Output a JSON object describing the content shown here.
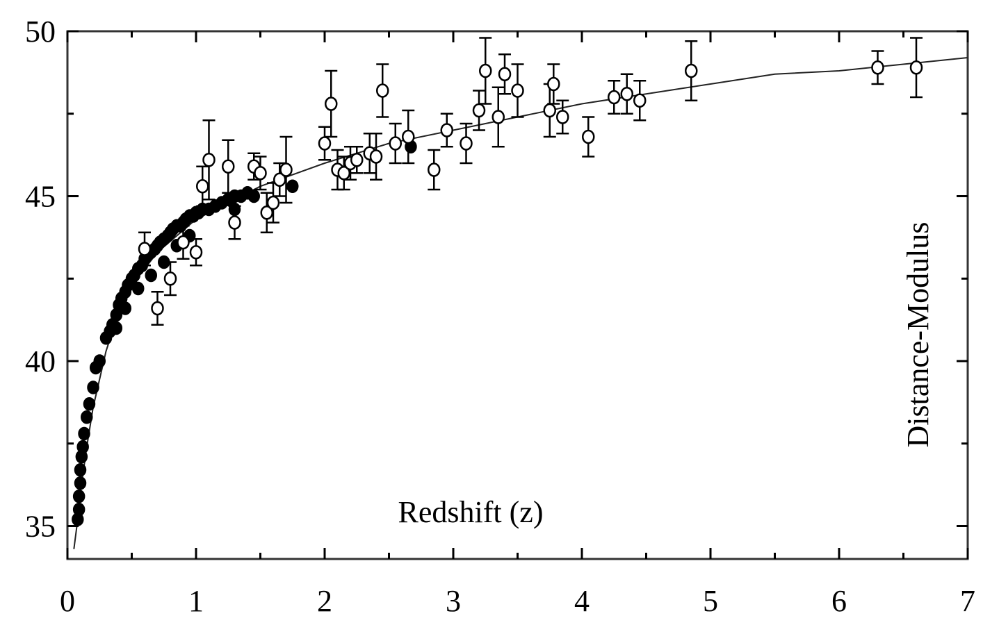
{
  "chart_data": {
    "type": "scatter",
    "title": "",
    "xlabel": "Redshift (z)",
    "ylabel": "Distance-Modulus",
    "xlim": [
      0,
      7
    ],
    "ylim": [
      34,
      50
    ],
    "grid": false,
    "x_ticks": [
      "0",
      "1",
      "2",
      "3",
      "4",
      "5",
      "6",
      "7"
    ],
    "y_ticks": [
      "35",
      "40",
      "45",
      "50"
    ],
    "series": [
      {
        "marker": "filled",
        "points": [
          [
            0.08,
            35.2
          ],
          [
            0.09,
            35.5
          ],
          [
            0.09,
            35.9
          ],
          [
            0.1,
            36.3
          ],
          [
            0.1,
            36.7
          ],
          [
            0.11,
            37.1
          ],
          [
            0.12,
            37.4
          ],
          [
            0.13,
            37.8
          ],
          [
            0.15,
            38.3
          ],
          [
            0.17,
            38.7
          ],
          [
            0.2,
            39.2
          ],
          [
            0.22,
            39.8
          ],
          [
            0.25,
            40.0
          ],
          [
            0.3,
            40.7
          ],
          [
            0.33,
            40.9
          ],
          [
            0.35,
            41.1
          ],
          [
            0.38,
            41.4
          ],
          [
            0.4,
            41.7
          ],
          [
            0.42,
            41.9
          ],
          [
            0.45,
            42.1
          ],
          [
            0.47,
            42.3
          ],
          [
            0.5,
            42.5
          ],
          [
            0.52,
            42.6
          ],
          [
            0.55,
            42.8
          ],
          [
            0.58,
            42.9
          ],
          [
            0.6,
            43.1
          ],
          [
            0.62,
            43.2
          ],
          [
            0.65,
            43.3
          ],
          [
            0.68,
            43.4
          ],
          [
            0.7,
            43.5
          ],
          [
            0.72,
            43.6
          ],
          [
            0.75,
            43.7
          ],
          [
            0.78,
            43.8
          ],
          [
            0.8,
            43.9
          ],
          [
            0.82,
            44.0
          ],
          [
            0.85,
            44.1
          ],
          [
            0.88,
            44.1
          ],
          [
            0.9,
            44.2
          ],
          [
            0.92,
            44.3
          ],
          [
            0.95,
            44.4
          ],
          [
            0.98,
            44.4
          ],
          [
            1.0,
            44.5
          ],
          [
            1.02,
            44.5
          ],
          [
            1.05,
            44.6
          ],
          [
            1.1,
            44.6
          ],
          [
            1.15,
            44.7
          ],
          [
            1.2,
            44.8
          ],
          [
            1.25,
            44.9
          ],
          [
            1.3,
            45.0
          ],
          [
            1.35,
            45.0
          ],
          [
            1.4,
            45.1
          ],
          [
            1.45,
            45.0
          ],
          [
            1.75,
            45.3
          ],
          [
            0.65,
            42.6
          ],
          [
            0.75,
            43.0
          ],
          [
            0.55,
            42.2
          ],
          [
            0.45,
            41.6
          ],
          [
            0.38,
            41.0
          ],
          [
            0.85,
            43.5
          ],
          [
            0.95,
            43.8
          ],
          [
            1.3,
            44.6
          ],
          [
            2.67,
            46.5
          ],
          [
            3.35,
            47.4
          ]
        ]
      },
      {
        "marker": "open",
        "points": [
          [
            0.6,
            43.4
          ],
          [
            0.7,
            41.6
          ],
          [
            0.8,
            42.5
          ],
          [
            0.9,
            43.6
          ],
          [
            1.0,
            43.3
          ],
          [
            1.05,
            45.3
          ],
          [
            1.1,
            46.1
          ],
          [
            1.25,
            45.9
          ],
          [
            1.3,
            44.2
          ],
          [
            1.45,
            45.9
          ],
          [
            1.5,
            45.7
          ],
          [
            1.55,
            44.5
          ],
          [
            1.6,
            44.8
          ],
          [
            1.65,
            45.5
          ],
          [
            1.7,
            45.8
          ],
          [
            2.0,
            46.6
          ],
          [
            2.05,
            47.8
          ],
          [
            2.1,
            45.8
          ],
          [
            2.15,
            45.7
          ],
          [
            2.2,
            46.0
          ],
          [
            2.25,
            46.1
          ],
          [
            2.35,
            46.3
          ],
          [
            2.4,
            46.2
          ],
          [
            2.45,
            48.2
          ],
          [
            2.55,
            46.6
          ],
          [
            2.65,
            46.8
          ],
          [
            2.85,
            45.8
          ],
          [
            2.95,
            47.0
          ],
          [
            3.1,
            46.6
          ],
          [
            3.2,
            47.6
          ],
          [
            3.25,
            48.8
          ],
          [
            3.35,
            47.4
          ],
          [
            3.4,
            48.7
          ],
          [
            3.5,
            48.2
          ],
          [
            3.75,
            47.6
          ],
          [
            3.78,
            48.4
          ],
          [
            3.85,
            47.4
          ],
          [
            4.05,
            46.8
          ],
          [
            4.25,
            48.0
          ],
          [
            4.35,
            48.1
          ],
          [
            4.45,
            47.9
          ],
          [
            4.85,
            48.8
          ],
          [
            6.3,
            48.9
          ],
          [
            6.6,
            48.9
          ]
        ]
      }
    ],
    "error_bars": [
      [
        0.6,
        43.4,
        0.5
      ],
      [
        0.7,
        41.6,
        0.5
      ],
      [
        0.8,
        42.5,
        0.5
      ],
      [
        0.9,
        43.6,
        0.5
      ],
      [
        1.0,
        43.3,
        0.4
      ],
      [
        1.05,
        45.3,
        0.6
      ],
      [
        1.1,
        46.1,
        1.2
      ],
      [
        1.25,
        45.9,
        0.8
      ],
      [
        1.3,
        44.2,
        0.5
      ],
      [
        1.45,
        45.9,
        0.4
      ],
      [
        1.5,
        45.7,
        0.5
      ],
      [
        1.55,
        44.5,
        0.6
      ],
      [
        1.6,
        44.8,
        0.6
      ],
      [
        1.65,
        45.5,
        0.5
      ],
      [
        1.7,
        45.8,
        1.0
      ],
      [
        2.0,
        46.6,
        0.5
      ],
      [
        2.05,
        47.8,
        1.0
      ],
      [
        2.1,
        45.8,
        0.6
      ],
      [
        2.15,
        45.7,
        0.5
      ],
      [
        2.2,
        46.0,
        0.5
      ],
      [
        2.25,
        46.1,
        0.4
      ],
      [
        2.35,
        46.3,
        0.6
      ],
      [
        2.4,
        46.2,
        0.7
      ],
      [
        2.45,
        48.2,
        0.8
      ],
      [
        2.55,
        46.6,
        0.6
      ],
      [
        2.65,
        46.8,
        0.8
      ],
      [
        2.85,
        45.8,
        0.6
      ],
      [
        2.95,
        47.0,
        0.5
      ],
      [
        3.1,
        46.6,
        0.6
      ],
      [
        3.2,
        47.6,
        0.6
      ],
      [
        3.25,
        48.8,
        1.0
      ],
      [
        3.35,
        47.4,
        0.9
      ],
      [
        3.4,
        48.7,
        0.6
      ],
      [
        3.5,
        48.2,
        0.8
      ],
      [
        3.75,
        47.6,
        0.8
      ],
      [
        3.78,
        48.4,
        0.6
      ],
      [
        3.85,
        47.4,
        0.5
      ],
      [
        4.05,
        46.8,
        0.6
      ],
      [
        4.25,
        48.0,
        0.5
      ],
      [
        4.35,
        48.1,
        0.6
      ],
      [
        4.45,
        47.9,
        0.6
      ],
      [
        4.85,
        48.8,
        0.9
      ],
      [
        6.3,
        48.9,
        0.5
      ],
      [
        6.6,
        48.9,
        0.9
      ]
    ],
    "fit_curve": [
      [
        0.05,
        34.3
      ],
      [
        0.08,
        35.2
      ],
      [
        0.1,
        36.0
      ],
      [
        0.15,
        37.4
      ],
      [
        0.2,
        38.6
      ],
      [
        0.3,
        40.3
      ],
      [
        0.4,
        41.5
      ],
      [
        0.5,
        42.3
      ],
      [
        0.7,
        43.3
      ],
      [
        1.0,
        44.3
      ],
      [
        1.5,
        45.3
      ],
      [
        2.0,
        46.0
      ],
      [
        2.5,
        46.6
      ],
      [
        3.0,
        47.0
      ],
      [
        3.5,
        47.4
      ],
      [
        4.0,
        47.8
      ],
      [
        4.5,
        48.1
      ],
      [
        5.0,
        48.4
      ],
      [
        5.5,
        48.7
      ],
      [
        6.0,
        48.8
      ],
      [
        6.5,
        49.0
      ],
      [
        7.0,
        49.2
      ]
    ],
    "colors": {
      "ink": "#000000",
      "frame": "#333333",
      "fit": "#222222",
      "open_fill": "#ffffff"
    }
  }
}
